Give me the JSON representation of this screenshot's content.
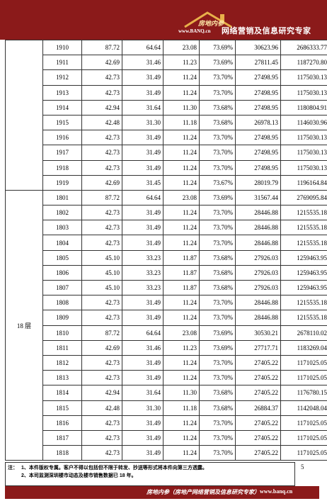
{
  "header": {
    "logo_text": "房地内参",
    "logo_url": "www.BANQ.cn",
    "title": "网络营销及信息研究专家"
  },
  "table": {
    "groups": [
      {
        "floor": "",
        "rows": [
          [
            "1910",
            "87.72",
            "64.64",
            "23.08",
            "73.69%",
            "30623.96",
            "2686333.77"
          ],
          [
            "1911",
            "42.69",
            "31.46",
            "11.23",
            "73.69%",
            "27811.45",
            "1187270.80"
          ],
          [
            "1912",
            "42.73",
            "31.49",
            "11.24",
            "73.70%",
            "27498.95",
            "1175030.13"
          ],
          [
            "1913",
            "42.73",
            "31.49",
            "11.24",
            "73.70%",
            "27498.95",
            "1175030.13"
          ],
          [
            "1914",
            "42.94",
            "31.64",
            "11.30",
            "73.68%",
            "27498.95",
            "1180804.91"
          ],
          [
            "1915",
            "42.48",
            "31.30",
            "11.18",
            "73.68%",
            "26978.13",
            "1146030.96"
          ],
          [
            "1916",
            "42.73",
            "31.49",
            "11.24",
            "73.70%",
            "27498.95",
            "1175030.13"
          ],
          [
            "1917",
            "42.73",
            "31.49",
            "11.24",
            "73.70%",
            "27498.95",
            "1175030.13"
          ],
          [
            "1918",
            "42.73",
            "31.49",
            "11.24",
            "73.70%",
            "27498.95",
            "1175030.13"
          ],
          [
            "1919",
            "42.69",
            "31.45",
            "11.24",
            "73.67%",
            "28019.79",
            "1196164.84"
          ]
        ]
      },
      {
        "floor": "18 层",
        "rows": [
          [
            "1801",
            "87.72",
            "64.64",
            "23.08",
            "73.69%",
            "31567.44",
            "2769095.84"
          ],
          [
            "1802",
            "42.73",
            "31.49",
            "11.24",
            "73.70%",
            "28446.88",
            "1215535.18"
          ],
          [
            "1803",
            "42.73",
            "31.49",
            "11.24",
            "73.70%",
            "28446.88",
            "1215535.18"
          ],
          [
            "1804",
            "42.73",
            "31.49",
            "11.24",
            "73.70%",
            "28446.88",
            "1215535.18"
          ],
          [
            "1805",
            "45.10",
            "33.23",
            "11.87",
            "73.68%",
            "27926.03",
            "1259463.95"
          ],
          [
            "1806",
            "45.10",
            "33.23",
            "11.87",
            "73.68%",
            "27926.03",
            "1259463.95"
          ],
          [
            "1807",
            "45.10",
            "33.23",
            "11.87",
            "73.68%",
            "27926.03",
            "1259463.95"
          ],
          [
            "1808",
            "42.73",
            "31.49",
            "11.24",
            "73.70%",
            "28446.88",
            "1215535.18"
          ],
          [
            "1809",
            "42.73",
            "31.49",
            "11.24",
            "73.70%",
            "28446.88",
            "1215535.18"
          ],
          [
            "1810",
            "87.72",
            "64.64",
            "23.08",
            "73.69%",
            "30530.21",
            "2678110.02"
          ],
          [
            "1811",
            "42.69",
            "31.46",
            "11.23",
            "73.69%",
            "27717.71",
            "1183269.04"
          ],
          [
            "1812",
            "42.73",
            "31.49",
            "11.24",
            "73.70%",
            "27405.22",
            "1171025.05"
          ],
          [
            "1813",
            "42.73",
            "31.49",
            "11.24",
            "73.70%",
            "27405.22",
            "1171025.05"
          ],
          [
            "1814",
            "42.94",
            "31.64",
            "11.30",
            "73.68%",
            "27405.22",
            "1176780.15"
          ],
          [
            "1815",
            "42.48",
            "31.30",
            "11.18",
            "73.68%",
            "26884.37",
            "1142048.04"
          ],
          [
            "1816",
            "42.73",
            "31.49",
            "11.24",
            "73.70%",
            "27405.22",
            "1171025.05"
          ],
          [
            "1817",
            "42.73",
            "31.49",
            "11.24",
            "73.70%",
            "27405.22",
            "1171025.05"
          ],
          [
            "1818",
            "42.73",
            "31.49",
            "11.24",
            "73.70%",
            "27405.22",
            "1171025.05"
          ]
        ]
      }
    ]
  },
  "notes": {
    "label": "注：",
    "lines": [
      "1、本件版权专属。客户不得以包括但不限于转发、抄送等形式将本件向第三方透露。",
      "2、本司监测深圳楼市动态及楼市销售数据已 18 年。"
    ]
  },
  "page_number": "5",
  "footer": {
    "text": "房地内参（房地产网络营销及信息研究专家）",
    "url": "www.banq.cn"
  },
  "colors": {
    "brand": "#8b1a1a"
  }
}
